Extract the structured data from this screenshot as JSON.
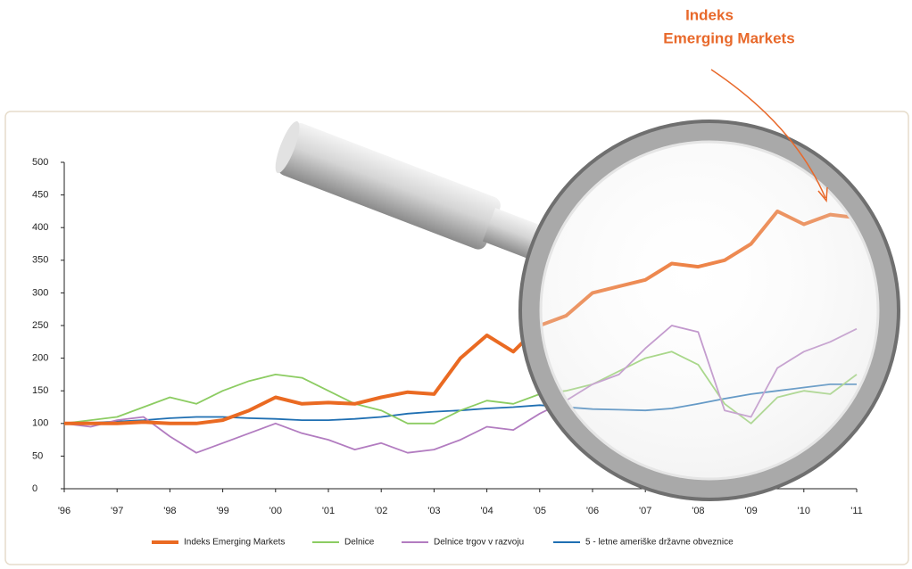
{
  "chart_data": {
    "type": "line",
    "annotation": [
      "Indeks",
      "Emerging Markets"
    ],
    "x": [
      1996,
      1996.5,
      1997,
      1997.5,
      1998,
      1998.5,
      1999,
      1999.5,
      2000,
      2000.5,
      2001,
      2001.5,
      2002,
      2002.5,
      2003,
      2003.5,
      2004,
      2004.5,
      2005,
      2005.5,
      2006,
      2006.5,
      2007,
      2007.5,
      2008,
      2008.5,
      2009,
      2009.5,
      2010,
      2010.5,
      2011
    ],
    "xlim": [
      1996,
      2011
    ],
    "xticks": [
      {
        "value": 1996,
        "label": "'96"
      },
      {
        "value": 1997,
        "label": "'97"
      },
      {
        "value": 1998,
        "label": "'98"
      },
      {
        "value": 1999,
        "label": "'99"
      },
      {
        "value": 2000,
        "label": "'00"
      },
      {
        "value": 2001,
        "label": "'01"
      },
      {
        "value": 2002,
        "label": "'02"
      },
      {
        "value": 2003,
        "label": "'03"
      },
      {
        "value": 2004,
        "label": "'04"
      },
      {
        "value": 2005,
        "label": "'05"
      },
      {
        "value": 2006,
        "label": "'06"
      },
      {
        "value": 2007,
        "label": "'07"
      },
      {
        "value": 2008,
        "label": "'08"
      },
      {
        "value": 2009,
        "label": "'09"
      },
      {
        "value": 2010,
        "label": "'10"
      },
      {
        "value": 2011,
        "label": "'11"
      }
    ],
    "ylim": [
      0,
      500
    ],
    "yticks": [
      0,
      50,
      100,
      150,
      200,
      250,
      300,
      350,
      400,
      450,
      500
    ],
    "series": [
      {
        "name": "Indeks Emerging Markets",
        "color": "#ea6a22",
        "values": [
          100,
          100,
          100,
          102,
          100,
          100,
          105,
          120,
          140,
          130,
          132,
          130,
          140,
          148,
          145,
          200,
          235,
          210,
          250,
          265,
          300,
          310,
          320,
          345,
          340,
          350,
          375,
          425,
          405,
          420,
          415
        ]
      },
      {
        "name": "Delnice",
        "color": "#8ccc62",
        "values": [
          100,
          105,
          110,
          125,
          140,
          130,
          150,
          165,
          175,
          170,
          150,
          130,
          120,
          100,
          100,
          120,
          135,
          130,
          145,
          150,
          160,
          180,
          200,
          210,
          190,
          130,
          100,
          140,
          150,
          145,
          175
        ]
      },
      {
        "name": "Delnice trgov v razvoju",
        "color": "#b27cc0",
        "values": [
          100,
          95,
          105,
          110,
          80,
          55,
          70,
          85,
          100,
          85,
          75,
          60,
          70,
          55,
          60,
          75,
          95,
          90,
          115,
          135,
          160,
          175,
          215,
          250,
          240,
          120,
          110,
          185,
          210,
          225,
          245
        ]
      },
      {
        "name": "5 - letne ameriške državne obveznice",
        "color": "#1f6fb2",
        "values": [
          100,
          101,
          103,
          105,
          108,
          110,
          110,
          108,
          107,
          105,
          105,
          107,
          110,
          115,
          118,
          120,
          123,
          125,
          128,
          125,
          122,
          121,
          120,
          123,
          130,
          138,
          145,
          150,
          155,
          160,
          160
        ]
      }
    ]
  }
}
